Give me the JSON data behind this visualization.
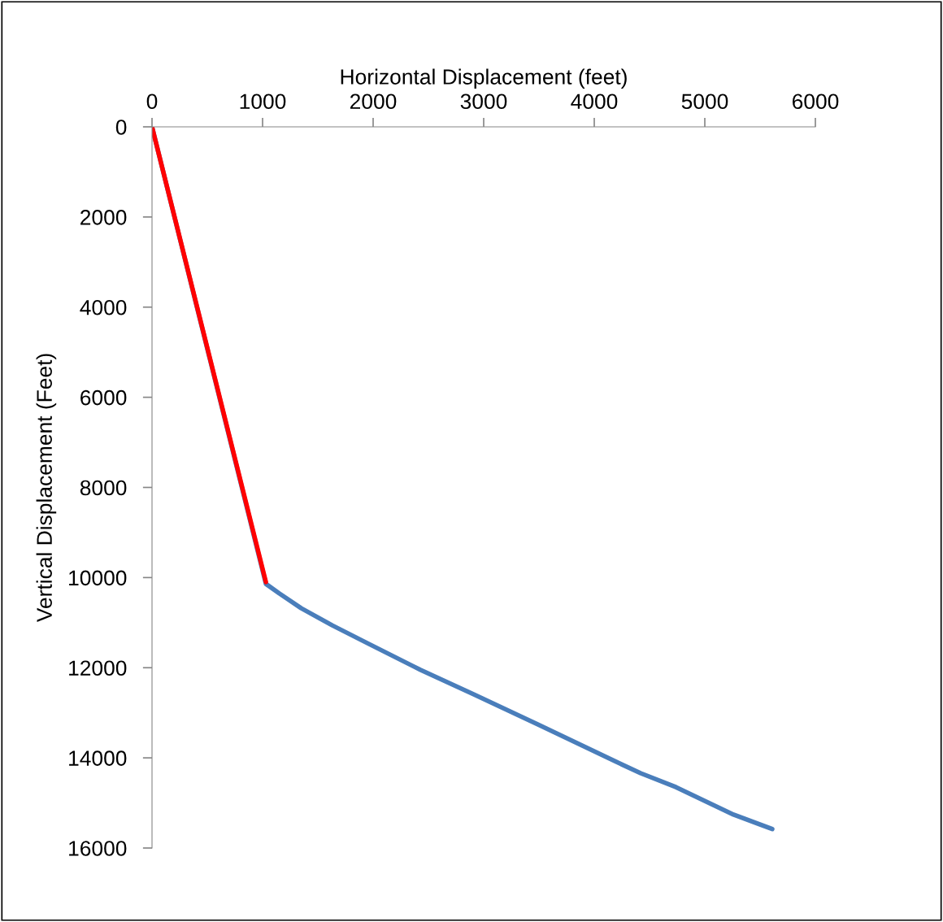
{
  "chart_data": {
    "type": "line",
    "xlabel": "Horizontal Displacement (feet)",
    "ylabel": "Vertical Displacement (Feet)",
    "xlim": [
      0,
      6000
    ],
    "xticks": [
      0,
      1000,
      2000,
      3000,
      4000,
      5000,
      6000
    ],
    "ylim": [
      16000,
      0
    ],
    "yticks": [
      0,
      2000,
      4000,
      6000,
      8000,
      10000,
      12000,
      14000,
      16000
    ],
    "grid": false,
    "marker": "none",
    "line_style": "solid",
    "series": [
      {
        "color": "#4a7ebb",
        "x": [
          0,
          1030,
          1150,
          1350,
          1630,
          1960,
          2430,
          2910,
          3490,
          4200,
          4420,
          4740,
          5260,
          5610
        ],
        "values": [
          0,
          10140,
          10350,
          10680,
          11060,
          11470,
          12050,
          12590,
          13260,
          14090,
          14340,
          14650,
          15260,
          15580
        ]
      },
      {
        "color": "#ff0000",
        "x": [
          0,
          1030
        ],
        "values": [
          0,
          10100
        ]
      }
    ]
  }
}
